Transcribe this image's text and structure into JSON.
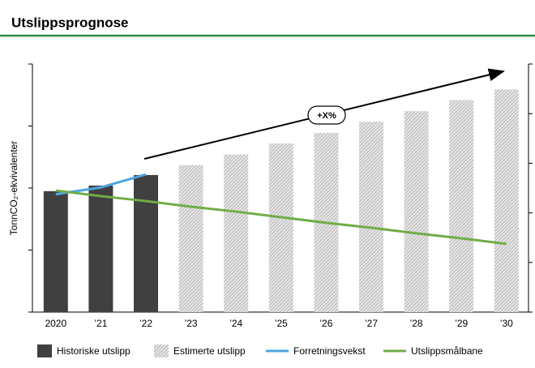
{
  "chart_data": {
    "type": "bar",
    "title": "Utslippsprognose",
    "y_label": "TonnCO₂-ekvivalenter",
    "categories": [
      "2020",
      "’21",
      "’22",
      "’23",
      "’24",
      "’25",
      "’26",
      "’27",
      "’28",
      "’29",
      "’30"
    ],
    "ylim": [
      0,
      4
    ],
    "yticks": [
      0,
      1,
      2,
      3,
      4
    ],
    "y2lim": [
      0,
      5
    ],
    "y2ticks": [
      0,
      1,
      2,
      3,
      4,
      5
    ],
    "annotation": "+X%",
    "series": [
      {
        "name": "Historiske utslipp",
        "type": "bar",
        "color": "#404040",
        "values": [
          1.95,
          2.04,
          2.21,
          null,
          null,
          null,
          null,
          null,
          null,
          null,
          null
        ]
      },
      {
        "name": "Estimerte utslipp",
        "type": "bar",
        "color": "#bdbdbd",
        "hatched": true,
        "values": [
          null,
          null,
          null,
          2.37,
          2.54,
          2.72,
          2.89,
          3.07,
          3.24,
          3.42,
          3.59
        ]
      },
      {
        "name": "Forretningsvekst",
        "type": "line",
        "color": "#4da6e0",
        "values": [
          1.9,
          2.01,
          2.22,
          null,
          null,
          null,
          null,
          null,
          null,
          null,
          null
        ]
      },
      {
        "name": "Utslippsmålbane",
        "type": "line",
        "color": "#70ad47",
        "values": [
          1.96,
          1.87,
          1.79,
          1.7,
          1.62,
          1.53,
          1.44,
          1.36,
          1.27,
          1.19,
          1.1
        ]
      }
    ]
  }
}
